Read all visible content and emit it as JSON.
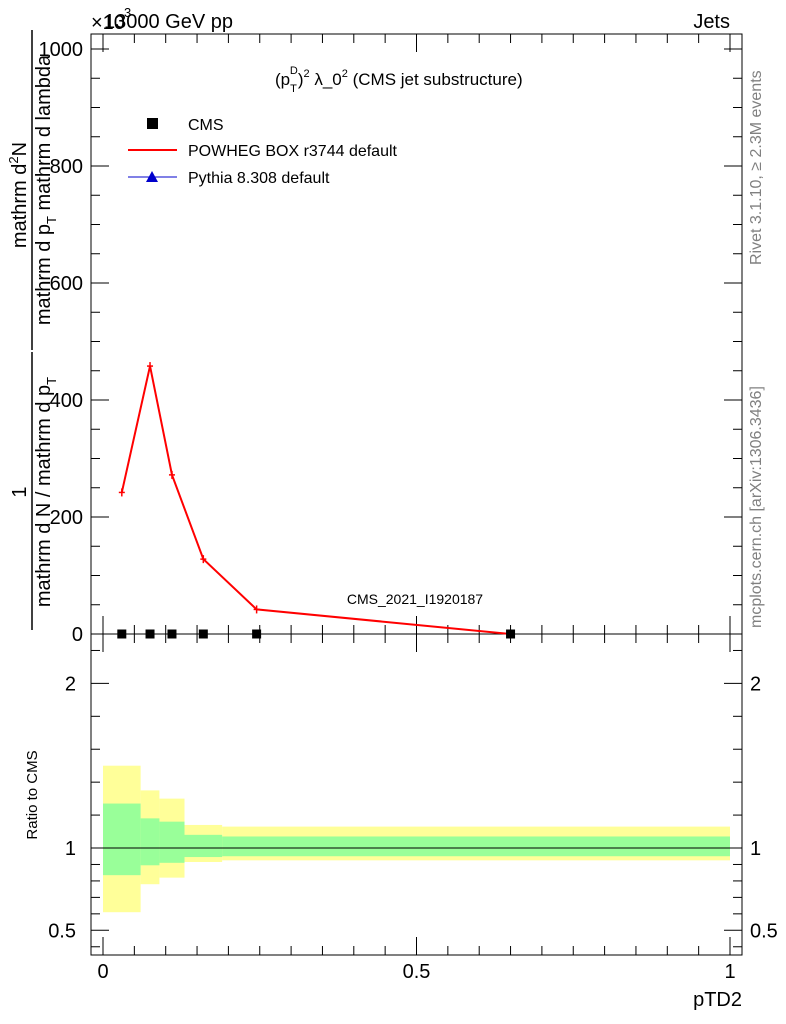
{
  "header": {
    "left": "13000 GeV pp",
    "right": "Jets",
    "scale_factor": "×10",
    "scale_exp": "3"
  },
  "side_labels": {
    "rivet": "Rivet 3.1.10, ≥ 2.3M events",
    "mcplots": "mcplots.cern.ch [arXiv:1306.3436]"
  },
  "chart_data": [
    {
      "type": "line",
      "title": "(p_T^D)^2 λ_0^2 (CMS jet substructure)",
      "title_parts": {
        "p": "(p",
        "T": "T",
        "D": "D",
        "close": ")",
        "sq": "2",
        "lam": " λ_0",
        "sq2": "2",
        "rest": " (CMS jet substructure)"
      },
      "ylabel": "1 / mathrm d N / mathrm d p_T mathrm d^2N / mathrm d p_T mathrm d lambda",
      "ylabel_parts": {
        "num1": "1",
        "den1": "mathrm d N / mathrm d p",
        "den1_sub": "T",
        "num2_a": "mathrm d",
        "num2_sup": "2",
        "num2_b": "N",
        "den2_a": "mathrm d p",
        "den2_sub": "T",
        "den2_b": " mathrm d lambda"
      },
      "xlim": [
        0,
        1
      ],
      "ylim": [
        0,
        6000
      ],
      "y_scale_note": "×10^3",
      "yticks": [
        0,
        200,
        400,
        600,
        800,
        1000
      ],
      "ytick_labels": [
        "0",
        "200",
        "400",
        "600",
        "800",
        "1000"
      ],
      "watermark": "CMS_2021_I1920187",
      "legend_position": "top-left",
      "legend": [
        {
          "name": "CMS",
          "color": "#000000",
          "marker": "square"
        },
        {
          "name": "POWHEG BOX r3744 default",
          "color": "#ff0000",
          "marker": "line"
        },
        {
          "name": "Pythia 8.308 default",
          "color": "#0000cc",
          "marker": "triangle"
        }
      ],
      "series": [
        {
          "name": "POWHEG BOX r3744 default",
          "color": "#ff0000",
          "x": [
            0.03,
            0.075,
            0.11,
            0.16,
            0.245,
            0.65
          ],
          "y": [
            242,
            458,
            272,
            128,
            42,
            0
          ]
        },
        {
          "name": "CMS",
          "color": "#000000",
          "x": [
            0.03,
            0.075,
            0.11,
            0.16,
            0.245,
            0.65
          ],
          "y": [
            0,
            0,
            0,
            0,
            0,
            0
          ]
        }
      ]
    },
    {
      "type": "area",
      "ylabel": "Ratio to CMS",
      "xlabel": "pTD2",
      "xlim": [
        0,
        1
      ],
      "ylim": [
        0.35,
        2.3
      ],
      "yticks": [
        0.5,
        1,
        2
      ],
      "ytick_labels": [
        "0.5",
        "1",
        "2"
      ],
      "xticks": [
        0,
        0.5,
        1
      ],
      "xtick_labels": [
        "0",
        "0.5",
        "1"
      ],
      "bins": [
        {
          "x0": 0.0,
          "x1": 0.06,
          "inner": [
            0.835,
            1.27
          ],
          "outer": [
            0.61,
            1.5
          ]
        },
        {
          "x0": 0.06,
          "x1": 0.09,
          "inner": [
            0.895,
            1.18
          ],
          "outer": [
            0.78,
            1.35
          ]
        },
        {
          "x0": 0.09,
          "x1": 0.13,
          "inner": [
            0.91,
            1.16
          ],
          "outer": [
            0.82,
            1.3
          ]
        },
        {
          "x0": 0.13,
          "x1": 0.19,
          "inner": [
            0.945,
            1.08
          ],
          "outer": [
            0.915,
            1.14
          ]
        },
        {
          "x0": 0.19,
          "x1": 1.0,
          "inner": [
            0.95,
            1.07
          ],
          "outer": [
            0.925,
            1.13
          ]
        }
      ],
      "colors": {
        "inner": "#99ff99",
        "outer": "#ffff99"
      }
    }
  ]
}
